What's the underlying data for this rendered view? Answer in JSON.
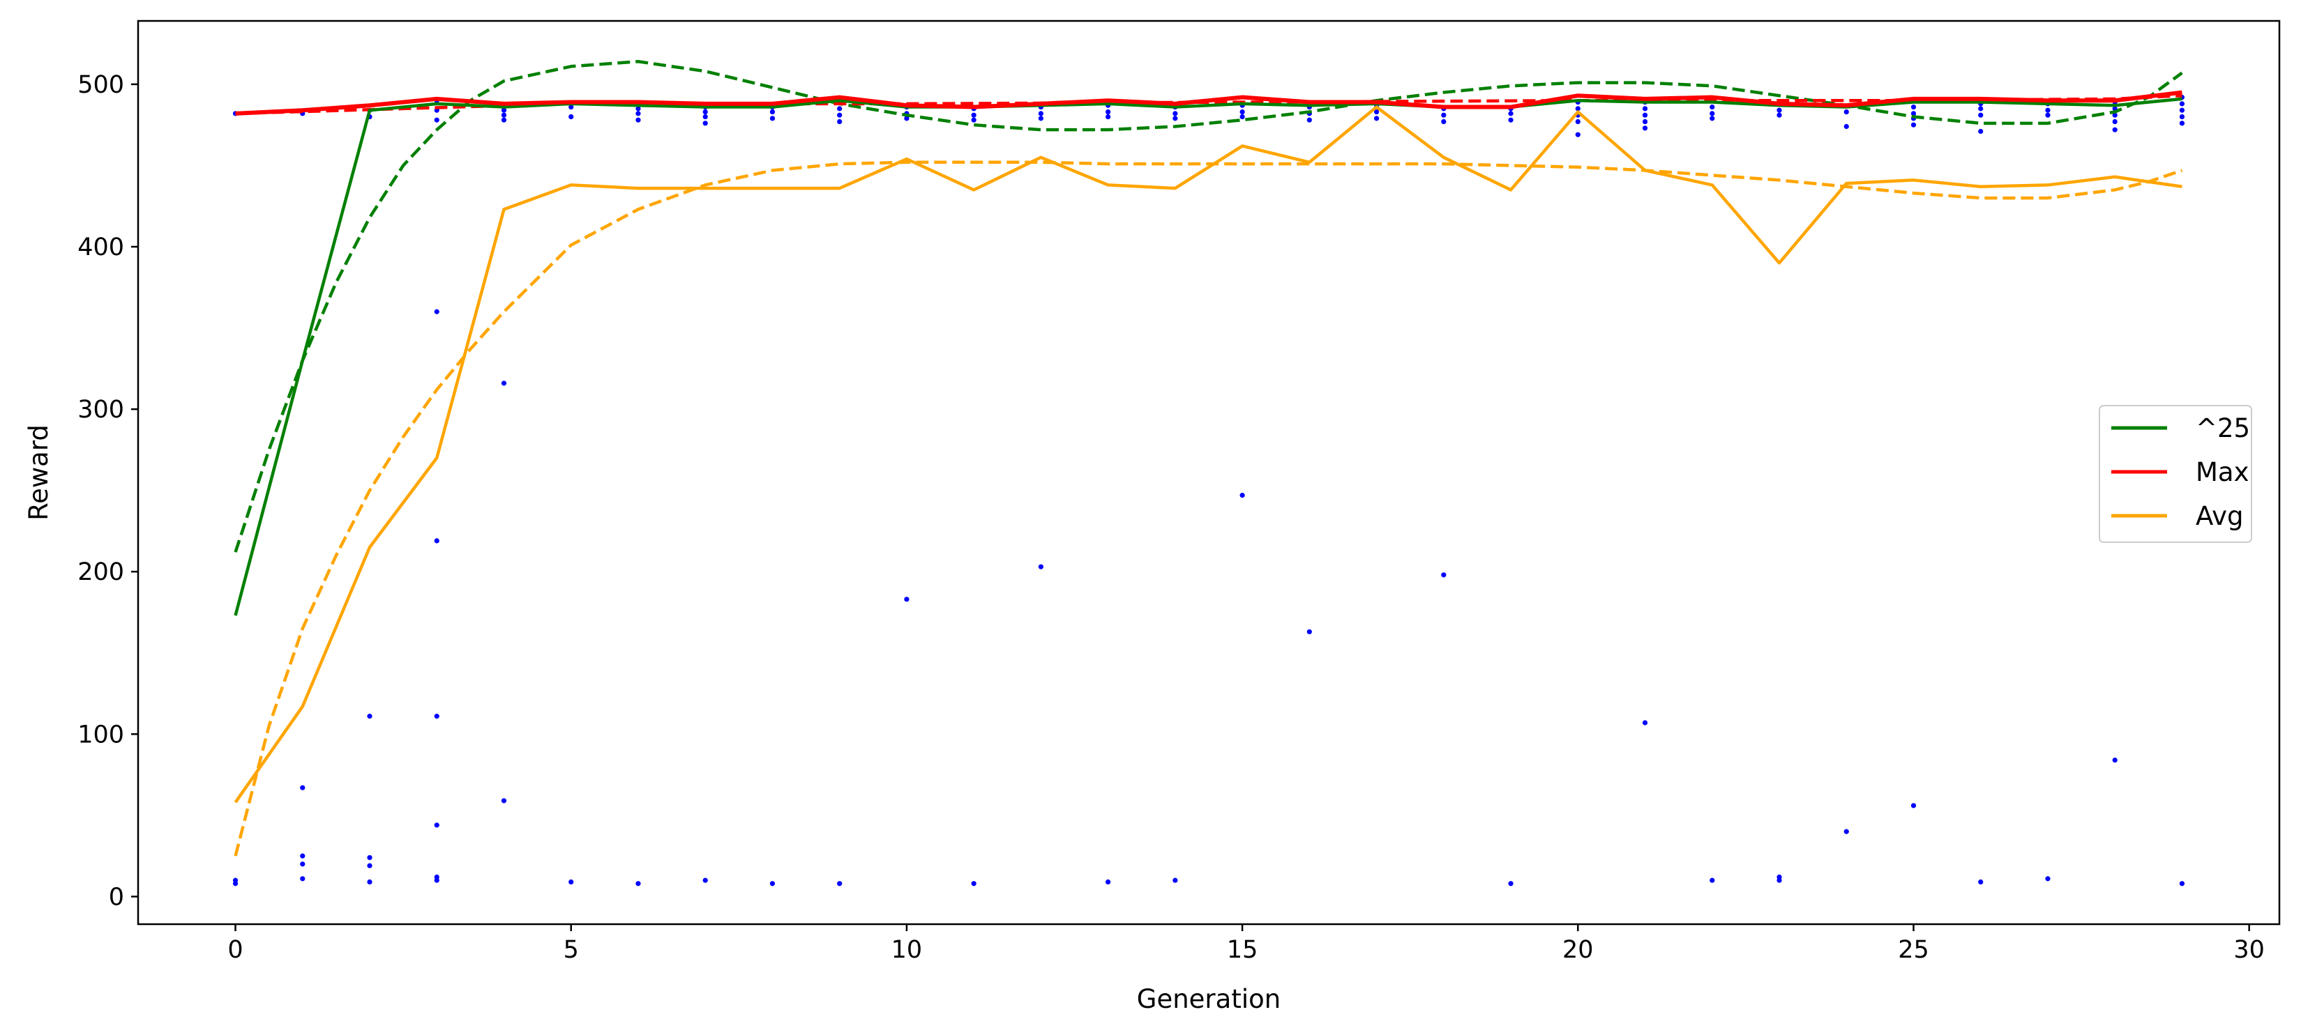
{
  "chart_data": {
    "type": "line",
    "xlabel": "Generation",
    "ylabel": "Reward",
    "xlim": [
      -1.45,
      30.45
    ],
    "ylim": [
      -17,
      539
    ],
    "xticks": [
      0,
      5,
      10,
      15,
      20,
      25,
      30
    ],
    "yticks": [
      0,
      100,
      200,
      300,
      400,
      500
    ],
    "legend_position": "center-right",
    "grid": false,
    "series": [
      {
        "name": "^25",
        "color": "#008000",
        "x": [
          0,
          1,
          2,
          3,
          4,
          5,
          6,
          7,
          8,
          9,
          10,
          11,
          12,
          13,
          14,
          15,
          16,
          17,
          18,
          19,
          20,
          21,
          22,
          23,
          24,
          25,
          26,
          27,
          28,
          29
        ],
        "values": [
          173,
          330,
          484,
          488,
          486,
          488,
          487,
          486,
          486,
          490,
          486,
          486,
          487,
          488,
          486,
          488,
          487,
          488,
          486,
          486,
          490,
          489,
          489,
          487,
          486,
          489,
          489,
          488,
          487,
          491
        ]
      },
      {
        "name": "Max",
        "color": "#ff0000",
        "x": [
          0,
          1,
          2,
          3,
          4,
          5,
          6,
          7,
          8,
          9,
          10,
          11,
          12,
          13,
          14,
          15,
          16,
          17,
          18,
          19,
          20,
          21,
          22,
          23,
          24,
          25,
          26,
          27,
          28,
          29
        ],
        "values": [
          482,
          484,
          487,
          491,
          488,
          489,
          489,
          488,
          488,
          492,
          487,
          486,
          488,
          490,
          488,
          492,
          489,
          489,
          486,
          486,
          493,
          491,
          492,
          488,
          487,
          491,
          491,
          490,
          490,
          495
        ]
      },
      {
        "name": "Avg",
        "color": "#ffa500",
        "x": [
          0,
          1,
          2,
          3,
          4,
          5,
          6,
          7,
          8,
          9,
          10,
          11,
          12,
          13,
          14,
          15,
          16,
          17,
          18,
          19,
          20,
          21,
          22,
          23,
          24,
          25,
          26,
          27,
          28,
          29
        ],
        "values": [
          58,
          117,
          215,
          270,
          423,
          438,
          436,
          436,
          436,
          436,
          454,
          435,
          455,
          438,
          436,
          462,
          452,
          486,
          455,
          435,
          483,
          447,
          438,
          390,
          439,
          441,
          437,
          438,
          443,
          437
        ]
      }
    ],
    "trend_series": [
      {
        "color": "#008000",
        "x": [
          0,
          0.5,
          1,
          1.5,
          2,
          2.5,
          3,
          3.5,
          4,
          5,
          6,
          7,
          8,
          9,
          10,
          11,
          12,
          13,
          14,
          15,
          16,
          17,
          18,
          19,
          20,
          21,
          22,
          23,
          24,
          25,
          26,
          27,
          28,
          28.5,
          29
        ],
        "values": [
          212,
          275,
          330,
          378,
          418,
          450,
          472,
          490,
          502,
          511,
          514,
          508,
          498,
          488,
          481,
          475,
          472,
          472,
          474,
          478,
          483,
          490,
          495,
          499,
          501,
          501,
          499,
          493,
          487,
          480,
          476,
          476,
          483,
          492,
          507
        ]
      },
      {
        "color": "#ff0000",
        "x": [
          0,
          5,
          10,
          15,
          20,
          25,
          28,
          29
        ],
        "values": [
          482,
          488,
          488,
          489,
          490,
          490,
          491,
          493
        ]
      },
      {
        "color": "#ffa500",
        "x": [
          0,
          0.5,
          1,
          1.5,
          2,
          2.5,
          3,
          3.5,
          4,
          5,
          6,
          7,
          8,
          9,
          10,
          11,
          12,
          13,
          14,
          15,
          16,
          17,
          18,
          19,
          20,
          21,
          22,
          23,
          24,
          25,
          26,
          27,
          28,
          28.5,
          29
        ],
        "values": [
          25,
          105,
          165,
          210,
          250,
          283,
          312,
          337,
          360,
          401,
          423,
          438,
          447,
          451,
          452,
          452,
          452,
          451,
          451,
          451,
          451,
          451,
          451,
          450,
          449,
          447,
          444,
          441,
          437,
          433,
          430,
          430,
          435,
          440,
          447
        ]
      }
    ],
    "scatter": {
      "color": "#0000ff",
      "points": [
        [
          0,
          8
        ],
        [
          0,
          10
        ],
        [
          0,
          482
        ],
        [
          1,
          11
        ],
        [
          1,
          20
        ],
        [
          1,
          25
        ],
        [
          1,
          67
        ],
        [
          1,
          482
        ],
        [
          2,
          9
        ],
        [
          2,
          19
        ],
        [
          2,
          24
        ],
        [
          2,
          111
        ],
        [
          2,
          480
        ],
        [
          2,
          484
        ],
        [
          3,
          10
        ],
        [
          3,
          12
        ],
        [
          3,
          44
        ],
        [
          3,
          111
        ],
        [
          3,
          219
        ],
        [
          3,
          360
        ],
        [
          3,
          478
        ],
        [
          3,
          484
        ],
        [
          3,
          490
        ],
        [
          4,
          59
        ],
        [
          4,
          316
        ],
        [
          4,
          478
        ],
        [
          4,
          481
        ],
        [
          4,
          484
        ],
        [
          4,
          487
        ],
        [
          5,
          9
        ],
        [
          5,
          480
        ],
        [
          5,
          486
        ],
        [
          6,
          8
        ],
        [
          6,
          478
        ],
        [
          6,
          482
        ],
        [
          6,
          485
        ],
        [
          7,
          10
        ],
        [
          7,
          476
        ],
        [
          7,
          480
        ],
        [
          7,
          483
        ],
        [
          7,
          486
        ],
        [
          8,
          8
        ],
        [
          8,
          479
        ],
        [
          8,
          483
        ],
        [
          8,
          486
        ],
        [
          9,
          8
        ],
        [
          9,
          477
        ],
        [
          9,
          481
        ],
        [
          9,
          485
        ],
        [
          9,
          489
        ],
        [
          10,
          183
        ],
        [
          10,
          479
        ],
        [
          10,
          482
        ],
        [
          10,
          486
        ],
        [
          11,
          8
        ],
        [
          11,
          478
        ],
        [
          11,
          481
        ],
        [
          11,
          485
        ],
        [
          12,
          203
        ],
        [
          12,
          479
        ],
        [
          12,
          482
        ],
        [
          12,
          486
        ],
        [
          13,
          9
        ],
        [
          13,
          480
        ],
        [
          13,
          483
        ],
        [
          13,
          487
        ],
        [
          14,
          10
        ],
        [
          14,
          479
        ],
        [
          14,
          482
        ],
        [
          14,
          486
        ],
        [
          15,
          247
        ],
        [
          15,
          480
        ],
        [
          15,
          483
        ],
        [
          15,
          487
        ],
        [
          16,
          163
        ],
        [
          16,
          478
        ],
        [
          16,
          482
        ],
        [
          16,
          486
        ],
        [
          17,
          479
        ],
        [
          17,
          483
        ],
        [
          17,
          487
        ],
        [
          18,
          198
        ],
        [
          18,
          477
        ],
        [
          18,
          481
        ],
        [
          18,
          485
        ],
        [
          19,
          8
        ],
        [
          19,
          478
        ],
        [
          19,
          482
        ],
        [
          19,
          485
        ],
        [
          20,
          469
        ],
        [
          20,
          477
        ],
        [
          20,
          481
        ],
        [
          20,
          485
        ],
        [
          20,
          489
        ],
        [
          21,
          107
        ],
        [
          21,
          473
        ],
        [
          21,
          477
        ],
        [
          21,
          481
        ],
        [
          21,
          485
        ],
        [
          21,
          489
        ],
        [
          22,
          10
        ],
        [
          22,
          479
        ],
        [
          22,
          482
        ],
        [
          22,
          486
        ],
        [
          22,
          490
        ],
        [
          23,
          10
        ],
        [
          23,
          12
        ],
        [
          23,
          481
        ],
        [
          23,
          484
        ],
        [
          24,
          40
        ],
        [
          24,
          474
        ],
        [
          24,
          483
        ],
        [
          25,
          56
        ],
        [
          25,
          475
        ],
        [
          25,
          479
        ],
        [
          25,
          482
        ],
        [
          25,
          486
        ],
        [
          26,
          9
        ],
        [
          26,
          471
        ],
        [
          26,
          481
        ],
        [
          26,
          485
        ],
        [
          26,
          488
        ],
        [
          27,
          11
        ],
        [
          27,
          481
        ],
        [
          27,
          484
        ],
        [
          27,
          488
        ],
        [
          28,
          84
        ],
        [
          28,
          472
        ],
        [
          28,
          477
        ],
        [
          28,
          481
        ],
        [
          28,
          485
        ],
        [
          28,
          489
        ],
        [
          29,
          8
        ],
        [
          29,
          476
        ],
        [
          29,
          480
        ],
        [
          29,
          484
        ],
        [
          29,
          488
        ],
        [
          29,
          492
        ]
      ]
    }
  }
}
